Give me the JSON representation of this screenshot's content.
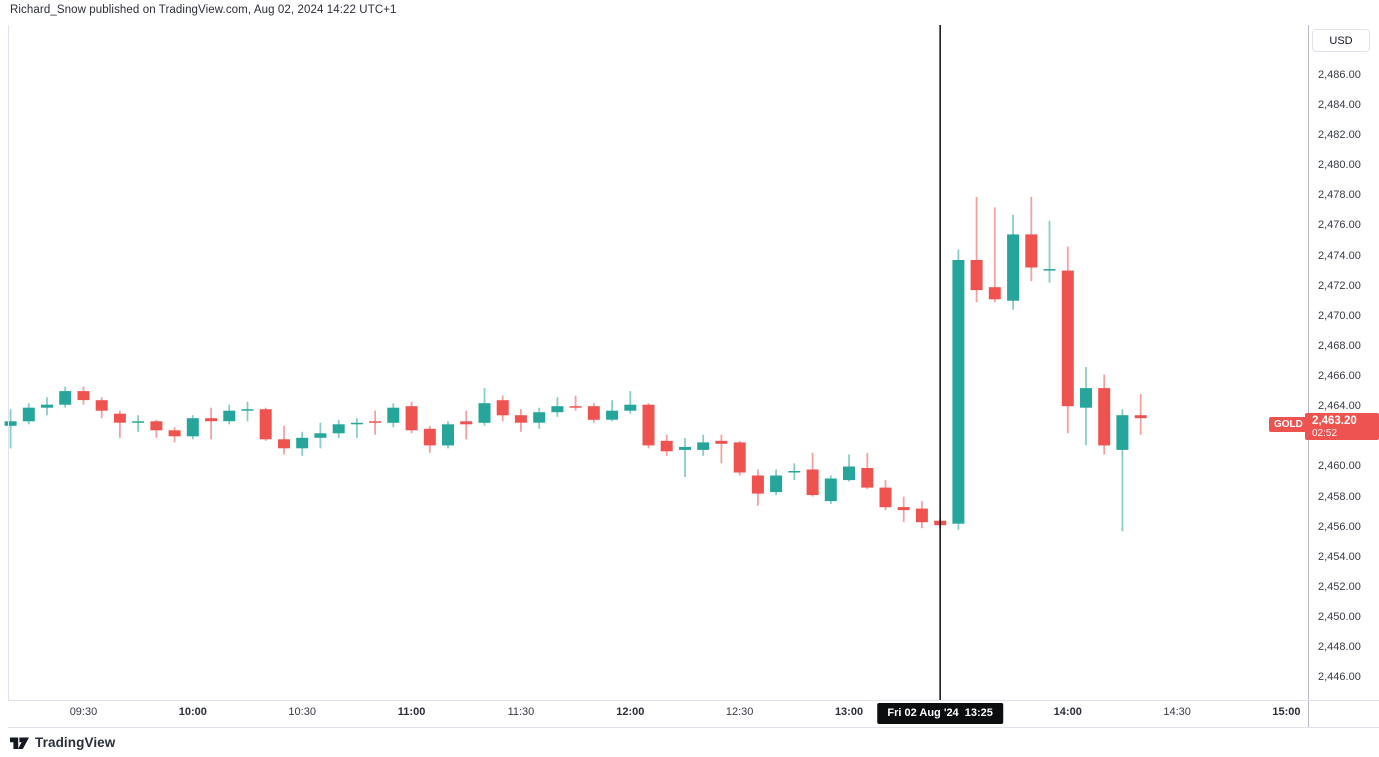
{
  "header": {
    "attribution": "Richard_Snow published on TradingView.com, Aug 02, 2024 14:22 UTC+1"
  },
  "footer": {
    "logo_text": "TradingView"
  },
  "price_axis": {
    "currency_button": "USD",
    "ticks": [
      {
        "label": "2,486.00",
        "value": 2486
      },
      {
        "label": "2,484.00",
        "value": 2484
      },
      {
        "label": "2,482.00",
        "value": 2482
      },
      {
        "label": "2,480.00",
        "value": 2480
      },
      {
        "label": "2,478.00",
        "value": 2478
      },
      {
        "label": "2,476.00",
        "value": 2476
      },
      {
        "label": "2,474.00",
        "value": 2474
      },
      {
        "label": "2,472.00",
        "value": 2472
      },
      {
        "label": "2,470.00",
        "value": 2470
      },
      {
        "label": "2,468.00",
        "value": 2468
      },
      {
        "label": "2,466.00",
        "value": 2466
      },
      {
        "label": "2,464.00",
        "value": 2464
      },
      {
        "label": "2,460.00",
        "value": 2460
      },
      {
        "label": "2,458.00",
        "value": 2458
      },
      {
        "label": "2,456.00",
        "value": 2456
      },
      {
        "label": "2,454.00",
        "value": 2454
      },
      {
        "label": "2,452.00",
        "value": 2452
      },
      {
        "label": "2,450.00",
        "value": 2450
      },
      {
        "label": "2,448.00",
        "value": 2448
      },
      {
        "label": "2,446.00",
        "value": 2446
      }
    ]
  },
  "time_axis": {
    "ticks": [
      {
        "label": "09:30",
        "bold": false
      },
      {
        "label": "10:00",
        "bold": true
      },
      {
        "label": "10:30",
        "bold": false
      },
      {
        "label": "11:00",
        "bold": true
      },
      {
        "label": "11:30",
        "bold": false
      },
      {
        "label": "12:00",
        "bold": true
      },
      {
        "label": "12:30",
        "bold": false
      },
      {
        "label": "13:00",
        "bold": true
      },
      {
        "label": "14:00",
        "bold": true
      },
      {
        "label": "14:30",
        "bold": false
      },
      {
        "label": "15:00",
        "bold": true
      }
    ]
  },
  "marker": {
    "label": "Fri 02 Aug '24  13:25",
    "time": "13:25"
  },
  "symbol_label": {
    "name": "GOLD",
    "price": "2,463.20",
    "countdown": "02:52"
  },
  "colors": {
    "up": "#26a69a",
    "down": "#ef5350",
    "label_bg": "#ef5350",
    "marker_line": "#0c0d0f",
    "marker_badge_bg": "#0c0d0f"
  },
  "chart_data": {
    "type": "candlestick",
    "symbol": "GOLD",
    "currency": "USD",
    "interval_minutes": 5,
    "last_price": 2463.2,
    "bar_countdown": "02:52",
    "marker_time": "13:25",
    "price_range": [
      2444.5,
      2489.3
    ],
    "time_range_minutes": [
      549.3,
      905.9
    ],
    "grid": false,
    "candles": [
      {
        "t": "09:10",
        "o": 2462.7,
        "h": 2463.8,
        "l": 2461.2,
        "c": 2463.0
      },
      {
        "t": "09:15",
        "o": 2463.0,
        "h": 2464.2,
        "l": 2462.8,
        "c": 2463.9
      },
      {
        "t": "09:20",
        "o": 2463.9,
        "h": 2464.6,
        "l": 2463.4,
        "c": 2464.1
      },
      {
        "t": "09:25",
        "o": 2464.1,
        "h": 2465.3,
        "l": 2463.9,
        "c": 2465.0
      },
      {
        "t": "09:30",
        "o": 2465.0,
        "h": 2465.3,
        "l": 2464.1,
        "c": 2464.4
      },
      {
        "t": "09:35",
        "o": 2464.4,
        "h": 2464.6,
        "l": 2463.2,
        "c": 2463.7
      },
      {
        "t": "09:40",
        "o": 2463.5,
        "h": 2463.7,
        "l": 2461.9,
        "c": 2462.9
      },
      {
        "t": "09:45",
        "o": 2462.9,
        "h": 2463.4,
        "l": 2462.3,
        "c": 2463.0
      },
      {
        "t": "09:50",
        "o": 2463.0,
        "h": 2463.1,
        "l": 2461.9,
        "c": 2462.4
      },
      {
        "t": "09:55",
        "o": 2462.4,
        "h": 2462.6,
        "l": 2461.6,
        "c": 2462.0
      },
      {
        "t": "10:00",
        "o": 2462.0,
        "h": 2463.4,
        "l": 2461.8,
        "c": 2463.2
      },
      {
        "t": "10:05",
        "o": 2463.2,
        "h": 2463.9,
        "l": 2461.8,
        "c": 2463.0
      },
      {
        "t": "10:10",
        "o": 2463.0,
        "h": 2464.1,
        "l": 2462.8,
        "c": 2463.7
      },
      {
        "t": "10:15",
        "o": 2463.7,
        "h": 2464.3,
        "l": 2463.0,
        "c": 2463.8
      },
      {
        "t": "10:20",
        "o": 2463.8,
        "h": 2463.9,
        "l": 2461.7,
        "c": 2461.8
      },
      {
        "t": "10:25",
        "o": 2461.8,
        "h": 2462.7,
        "l": 2460.8,
        "c": 2461.2
      },
      {
        "t": "10:30",
        "o": 2461.2,
        "h": 2462.3,
        "l": 2460.7,
        "c": 2461.9
      },
      {
        "t": "10:35",
        "o": 2461.9,
        "h": 2462.9,
        "l": 2461.2,
        "c": 2462.2
      },
      {
        "t": "10:40",
        "o": 2462.2,
        "h": 2463.1,
        "l": 2461.9,
        "c": 2462.8
      },
      {
        "t": "10:45",
        "o": 2462.8,
        "h": 2463.2,
        "l": 2461.9,
        "c": 2462.9
      },
      {
        "t": "10:50",
        "o": 2463.0,
        "h": 2463.7,
        "l": 2462.1,
        "c": 2462.9
      },
      {
        "t": "10:55",
        "o": 2462.9,
        "h": 2464.2,
        "l": 2462.6,
        "c": 2463.9
      },
      {
        "t": "11:00",
        "o": 2464.0,
        "h": 2464.3,
        "l": 2462.2,
        "c": 2462.4
      },
      {
        "t": "11:05",
        "o": 2462.5,
        "h": 2462.7,
        "l": 2460.9,
        "c": 2461.4
      },
      {
        "t": "11:10",
        "o": 2461.4,
        "h": 2463.0,
        "l": 2461.2,
        "c": 2462.8
      },
      {
        "t": "11:15",
        "o": 2463.0,
        "h": 2463.7,
        "l": 2461.8,
        "c": 2462.8
      },
      {
        "t": "11:20",
        "o": 2462.9,
        "h": 2465.2,
        "l": 2462.7,
        "c": 2464.2
      },
      {
        "t": "11:25",
        "o": 2464.4,
        "h": 2464.7,
        "l": 2463.0,
        "c": 2463.4
      },
      {
        "t": "11:30",
        "o": 2463.4,
        "h": 2463.8,
        "l": 2462.3,
        "c": 2462.9
      },
      {
        "t": "11:35",
        "o": 2462.9,
        "h": 2463.9,
        "l": 2462.5,
        "c": 2463.6
      },
      {
        "t": "11:40",
        "o": 2463.6,
        "h": 2464.6,
        "l": 2463.3,
        "c": 2464.0
      },
      {
        "t": "11:45",
        "o": 2464.0,
        "h": 2464.7,
        "l": 2463.7,
        "c": 2463.9
      },
      {
        "t": "11:50",
        "o": 2464.0,
        "h": 2464.2,
        "l": 2462.9,
        "c": 2463.1
      },
      {
        "t": "11:55",
        "o": 2463.1,
        "h": 2464.4,
        "l": 2463.0,
        "c": 2463.7
      },
      {
        "t": "12:00",
        "o": 2463.7,
        "h": 2465.0,
        "l": 2463.5,
        "c": 2464.1
      },
      {
        "t": "12:05",
        "o": 2464.1,
        "h": 2464.2,
        "l": 2461.2,
        "c": 2461.4
      },
      {
        "t": "12:10",
        "o": 2461.7,
        "h": 2462.1,
        "l": 2460.7,
        "c": 2461.0
      },
      {
        "t": "12:15",
        "o": 2461.1,
        "h": 2461.9,
        "l": 2459.3,
        "c": 2461.3
      },
      {
        "t": "12:20",
        "o": 2461.1,
        "h": 2462.1,
        "l": 2460.7,
        "c": 2461.6
      },
      {
        "t": "12:25",
        "o": 2461.7,
        "h": 2462.1,
        "l": 2460.2,
        "c": 2461.5
      },
      {
        "t": "12:30",
        "o": 2461.6,
        "h": 2461.7,
        "l": 2459.4,
        "c": 2459.6
      },
      {
        "t": "12:35",
        "o": 2459.4,
        "h": 2459.8,
        "l": 2457.4,
        "c": 2458.2
      },
      {
        "t": "12:40",
        "o": 2458.3,
        "h": 2459.8,
        "l": 2458.1,
        "c": 2459.4
      },
      {
        "t": "12:45",
        "o": 2459.6,
        "h": 2460.2,
        "l": 2459.1,
        "c": 2459.7
      },
      {
        "t": "12:50",
        "o": 2459.8,
        "h": 2460.9,
        "l": 2458.0,
        "c": 2458.1
      },
      {
        "t": "12:55",
        "o": 2457.7,
        "h": 2459.4,
        "l": 2457.5,
        "c": 2459.2
      },
      {
        "t": "13:00",
        "o": 2459.1,
        "h": 2460.8,
        "l": 2459.0,
        "c": 2460.0
      },
      {
        "t": "13:05",
        "o": 2459.9,
        "h": 2460.9,
        "l": 2458.5,
        "c": 2458.6
      },
      {
        "t": "13:10",
        "o": 2458.6,
        "h": 2459.1,
        "l": 2457.1,
        "c": 2457.3
      },
      {
        "t": "13:15",
        "o": 2457.3,
        "h": 2458.0,
        "l": 2456.3,
        "c": 2457.1
      },
      {
        "t": "13:20",
        "o": 2457.2,
        "h": 2457.7,
        "l": 2455.9,
        "c": 2456.3
      },
      {
        "t": "13:25",
        "o": 2456.4,
        "h": 2456.6,
        "l": 2455.9,
        "c": 2456.1
      },
      {
        "t": "13:30",
        "o": 2456.2,
        "h": 2474.4,
        "l": 2455.8,
        "c": 2473.7
      },
      {
        "t": "13:35",
        "o": 2473.7,
        "h": 2477.9,
        "l": 2470.9,
        "c": 2471.7
      },
      {
        "t": "13:40",
        "o": 2471.9,
        "h": 2477.2,
        "l": 2470.9,
        "c": 2471.1
      },
      {
        "t": "13:45",
        "o": 2471.0,
        "h": 2476.7,
        "l": 2470.4,
        "c": 2475.4
      },
      {
        "t": "13:50",
        "o": 2475.4,
        "h": 2477.9,
        "l": 2472.3,
        "c": 2473.2
      },
      {
        "t": "13:55",
        "o": 2473.0,
        "h": 2476.3,
        "l": 2472.2,
        "c": 2473.1
      },
      {
        "t": "14:00",
        "o": 2473.0,
        "h": 2474.6,
        "l": 2462.2,
        "c": 2464.0
      },
      {
        "t": "14:05",
        "o": 2463.9,
        "h": 2466.6,
        "l": 2461.4,
        "c": 2465.2
      },
      {
        "t": "14:10",
        "o": 2465.2,
        "h": 2466.1,
        "l": 2460.8,
        "c": 2461.4
      },
      {
        "t": "14:15",
        "o": 2461.1,
        "h": 2463.8,
        "l": 2455.7,
        "c": 2463.4
      },
      {
        "t": "14:20",
        "o": 2463.4,
        "h": 2464.8,
        "l": 2462.1,
        "c": 2463.2
      }
    ]
  }
}
